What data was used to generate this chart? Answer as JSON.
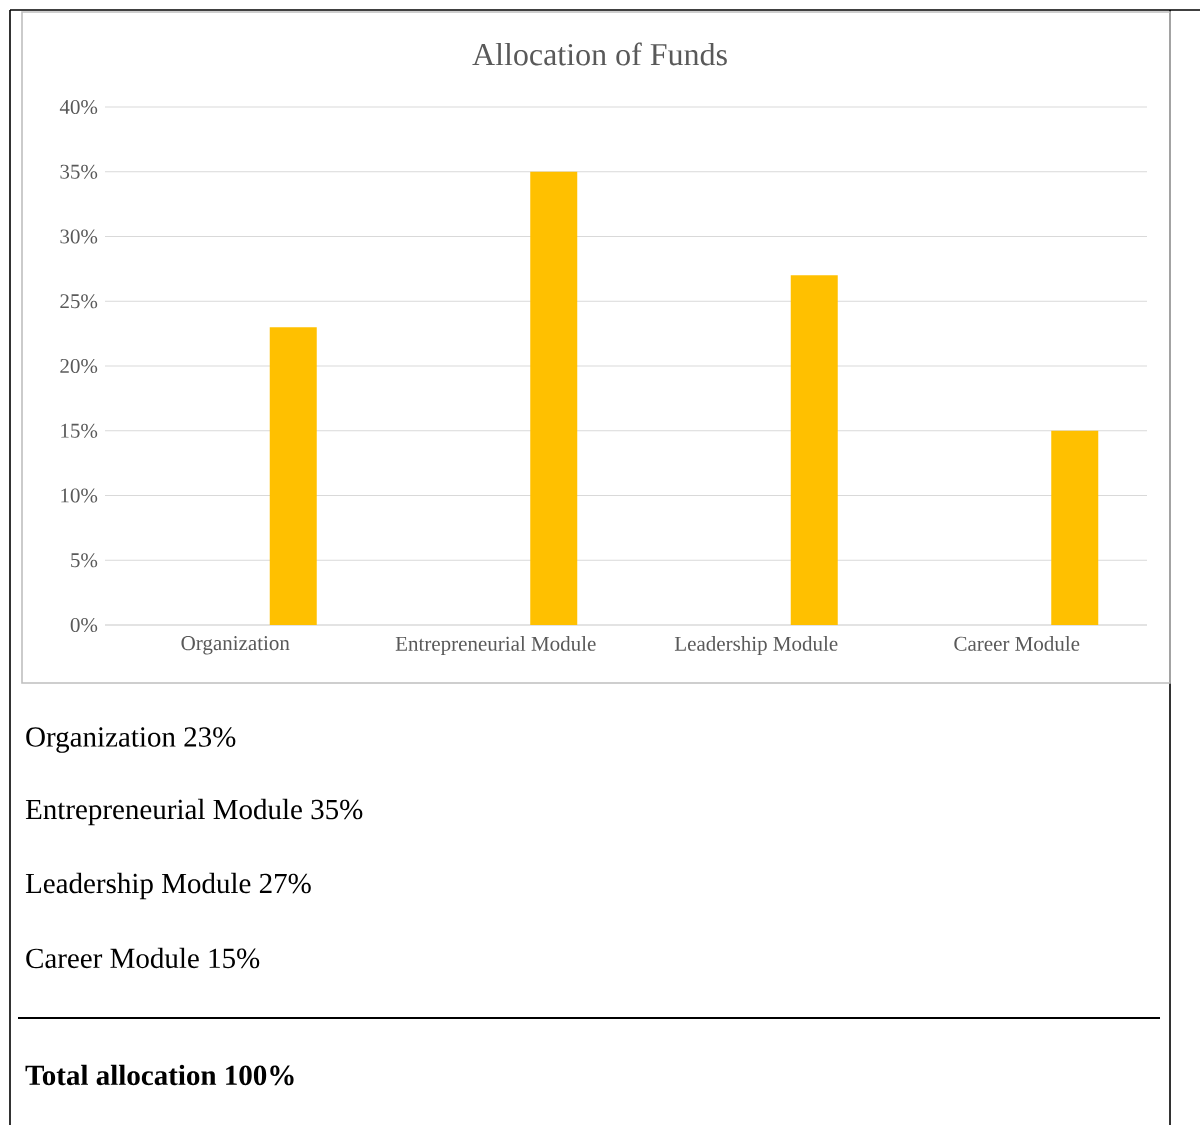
{
  "chart_data": {
    "type": "bar",
    "title": "Allocation of Funds",
    "categories": [
      "Organization",
      "Entrepreneurial Module",
      "Leadership Module",
      "Career Module"
    ],
    "values": [
      23,
      35,
      27,
      15
    ],
    "color": "#ffc000",
    "ylim": [
      0,
      40
    ],
    "yticks": [
      {
        "value": 0,
        "label": "0%"
      },
      {
        "value": 5,
        "label": "5%"
      },
      {
        "value": 10,
        "label": "10%"
      },
      {
        "value": 15,
        "label": "15%"
      },
      {
        "value": 20,
        "label": "20%"
      },
      {
        "value": 25,
        "label": "25%"
      },
      {
        "value": 30,
        "label": "30%"
      },
      {
        "value": 35,
        "label": "35%"
      },
      {
        "value": 40,
        "label": "40%"
      }
    ],
    "grid": "y",
    "annotations": [
      "Organization 23%",
      "Entrepreneurial Module 35%",
      "Leadership Module 27%",
      "Career Module 15%",
      "Total allocation 100%"
    ]
  }
}
